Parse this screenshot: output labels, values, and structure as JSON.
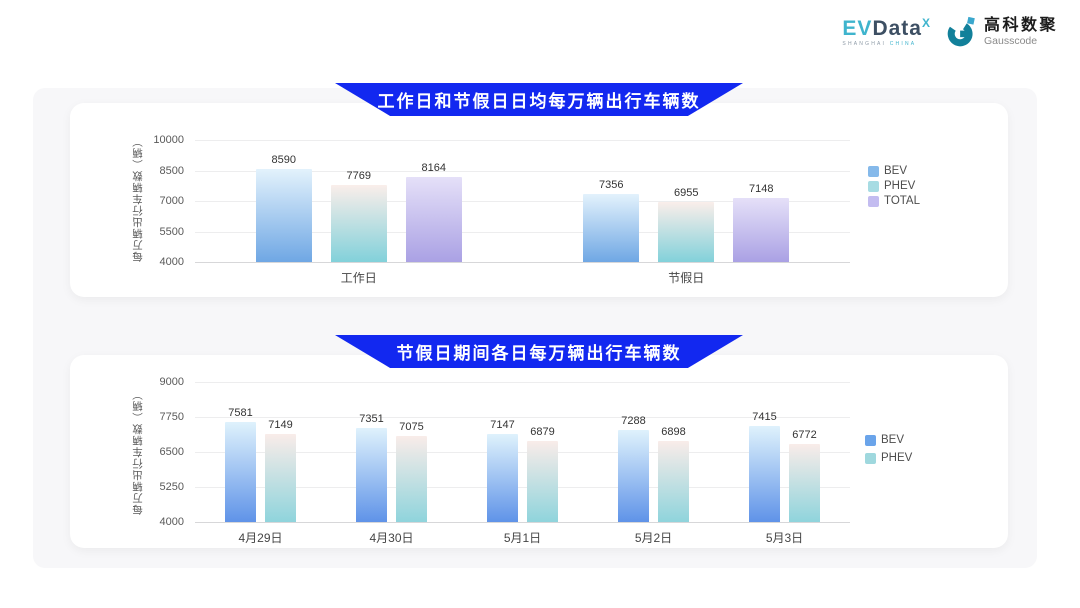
{
  "header": {
    "evdata_logo": {
      "ev": "EV",
      "data": "Data",
      "sup": "X",
      "tagline_left": "SHANGHAI",
      "tagline_right": "CHINA"
    },
    "gausscode_logo": {
      "cn": "高科数聚",
      "en": "Gausscode"
    }
  },
  "colors": {
    "banner_blue": "#1228f0",
    "panel_bg": "#f7f7f9",
    "card_bg": "#ffffff",
    "gridline": "#ededee",
    "axis_line": "#d7d7d9",
    "tick_text": "#595959",
    "value_text": "#333333",
    "gausscode_teal": "#12809a",
    "gausscode_light_blue": "#3aa7cd",
    "evdata_cyan": "#3fb4cd",
    "evdata_dark": "#3d4f63"
  },
  "chart_data": [
    {
      "type": "bar",
      "title": "工作日和节假日日均每万辆出行车辆数",
      "ylabel": "每万辆出行车辆数（辆）",
      "xlabel": "",
      "ylim": [
        4000,
        10000
      ],
      "yticks": [
        10000,
        8500,
        7000,
        5500,
        4000
      ],
      "grid": true,
      "legend_position": "right",
      "categories": [
        "工作日",
        "节假日"
      ],
      "series": [
        {
          "name": "BEV",
          "values": [
            8590,
            7356
          ],
          "gradient": [
            "#e3f2fc",
            "#6fa7e4"
          ],
          "legend_color": "#85b9ea"
        },
        {
          "name": "PHEV",
          "values": [
            7769,
            6955
          ],
          "gradient": [
            "#faeeea",
            "#82d1da"
          ],
          "legend_color": "#a7dce3"
        },
        {
          "name": "TOTAL",
          "values": [
            8164,
            7148
          ],
          "gradient": [
            "#e5e0f8",
            "#aaa1e4"
          ],
          "legend_color": "#c3bcf0"
        }
      ]
    },
    {
      "type": "bar",
      "title": "节假日期间各日每万辆出行车辆数",
      "ylabel": "每万辆出行车辆数（辆）",
      "xlabel": "",
      "ylim": [
        4000,
        9000
      ],
      "yticks": [
        9000,
        7750,
        6500,
        5250,
        4000
      ],
      "grid": true,
      "legend_position": "right",
      "categories": [
        "4月29日",
        "4月30日",
        "5月1日",
        "5月2日",
        "5月3日"
      ],
      "series": [
        {
          "name": "BEV",
          "values": [
            7581,
            7351,
            7147,
            7288,
            7415
          ],
          "gradient": [
            "#dff2fc",
            "#5f93e8"
          ],
          "legend_color": "#6aa4ea"
        },
        {
          "name": "PHEV",
          "values": [
            7149,
            7075,
            6879,
            6898,
            6772
          ],
          "gradient": [
            "#f9ece9",
            "#8fd4dc"
          ],
          "legend_color": "#9fd8de"
        }
      ]
    }
  ]
}
